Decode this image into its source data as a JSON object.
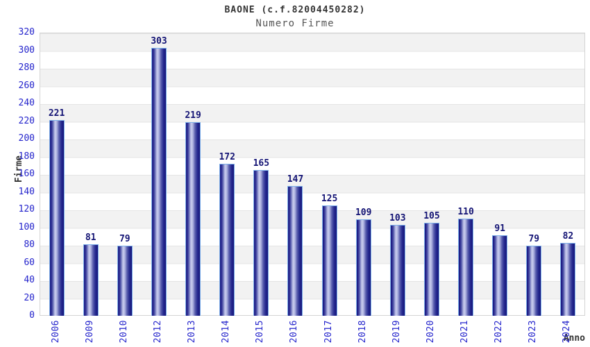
{
  "header": {
    "title": "BAONE (c.f.82004450282)",
    "subtitle": "Numero Firme"
  },
  "colors": {
    "title_text": "#333333",
    "subtitle_text": "#555555",
    "tick_label": "#2424cc",
    "value_label": "#131374",
    "bar_edge_dark": "#191980",
    "bar_center_light": "#c9cdee",
    "bar_outline": "#7db0ea",
    "band_gray": "#f2f2f2",
    "band_white": "#ffffff",
    "plot_border": "#d4d4d4"
  },
  "chart_data": {
    "type": "bar",
    "title": "BAONE (c.f.82004450282)",
    "subtitle": "Numero Firme",
    "xlabel": "Anno",
    "ylabel": "Firme",
    "categories": [
      "2006",
      "2009",
      "2010",
      "2012",
      "2013",
      "2014",
      "2015",
      "2016",
      "2017",
      "2018",
      "2019",
      "2020",
      "2021",
      "2022",
      "2023",
      "2024"
    ],
    "values": [
      221,
      81,
      79,
      303,
      219,
      172,
      165,
      147,
      125,
      109,
      103,
      105,
      110,
      91,
      79,
      82
    ],
    "ylim": [
      0,
      320
    ],
    "ytick_step": 20,
    "ytick_labels": [
      "0",
      "20",
      "40",
      "60",
      "80",
      "100",
      "120",
      "140",
      "160",
      "180",
      "200",
      "220",
      "240",
      "260",
      "280",
      "300",
      "320"
    ],
    "grid": "alternating horizontal bands every 20 units, gray/white, starting gray below 320",
    "legend": "none",
    "bar_labels": "values shown above each bar",
    "x_tick_rotation": "90deg counterclockwise"
  }
}
